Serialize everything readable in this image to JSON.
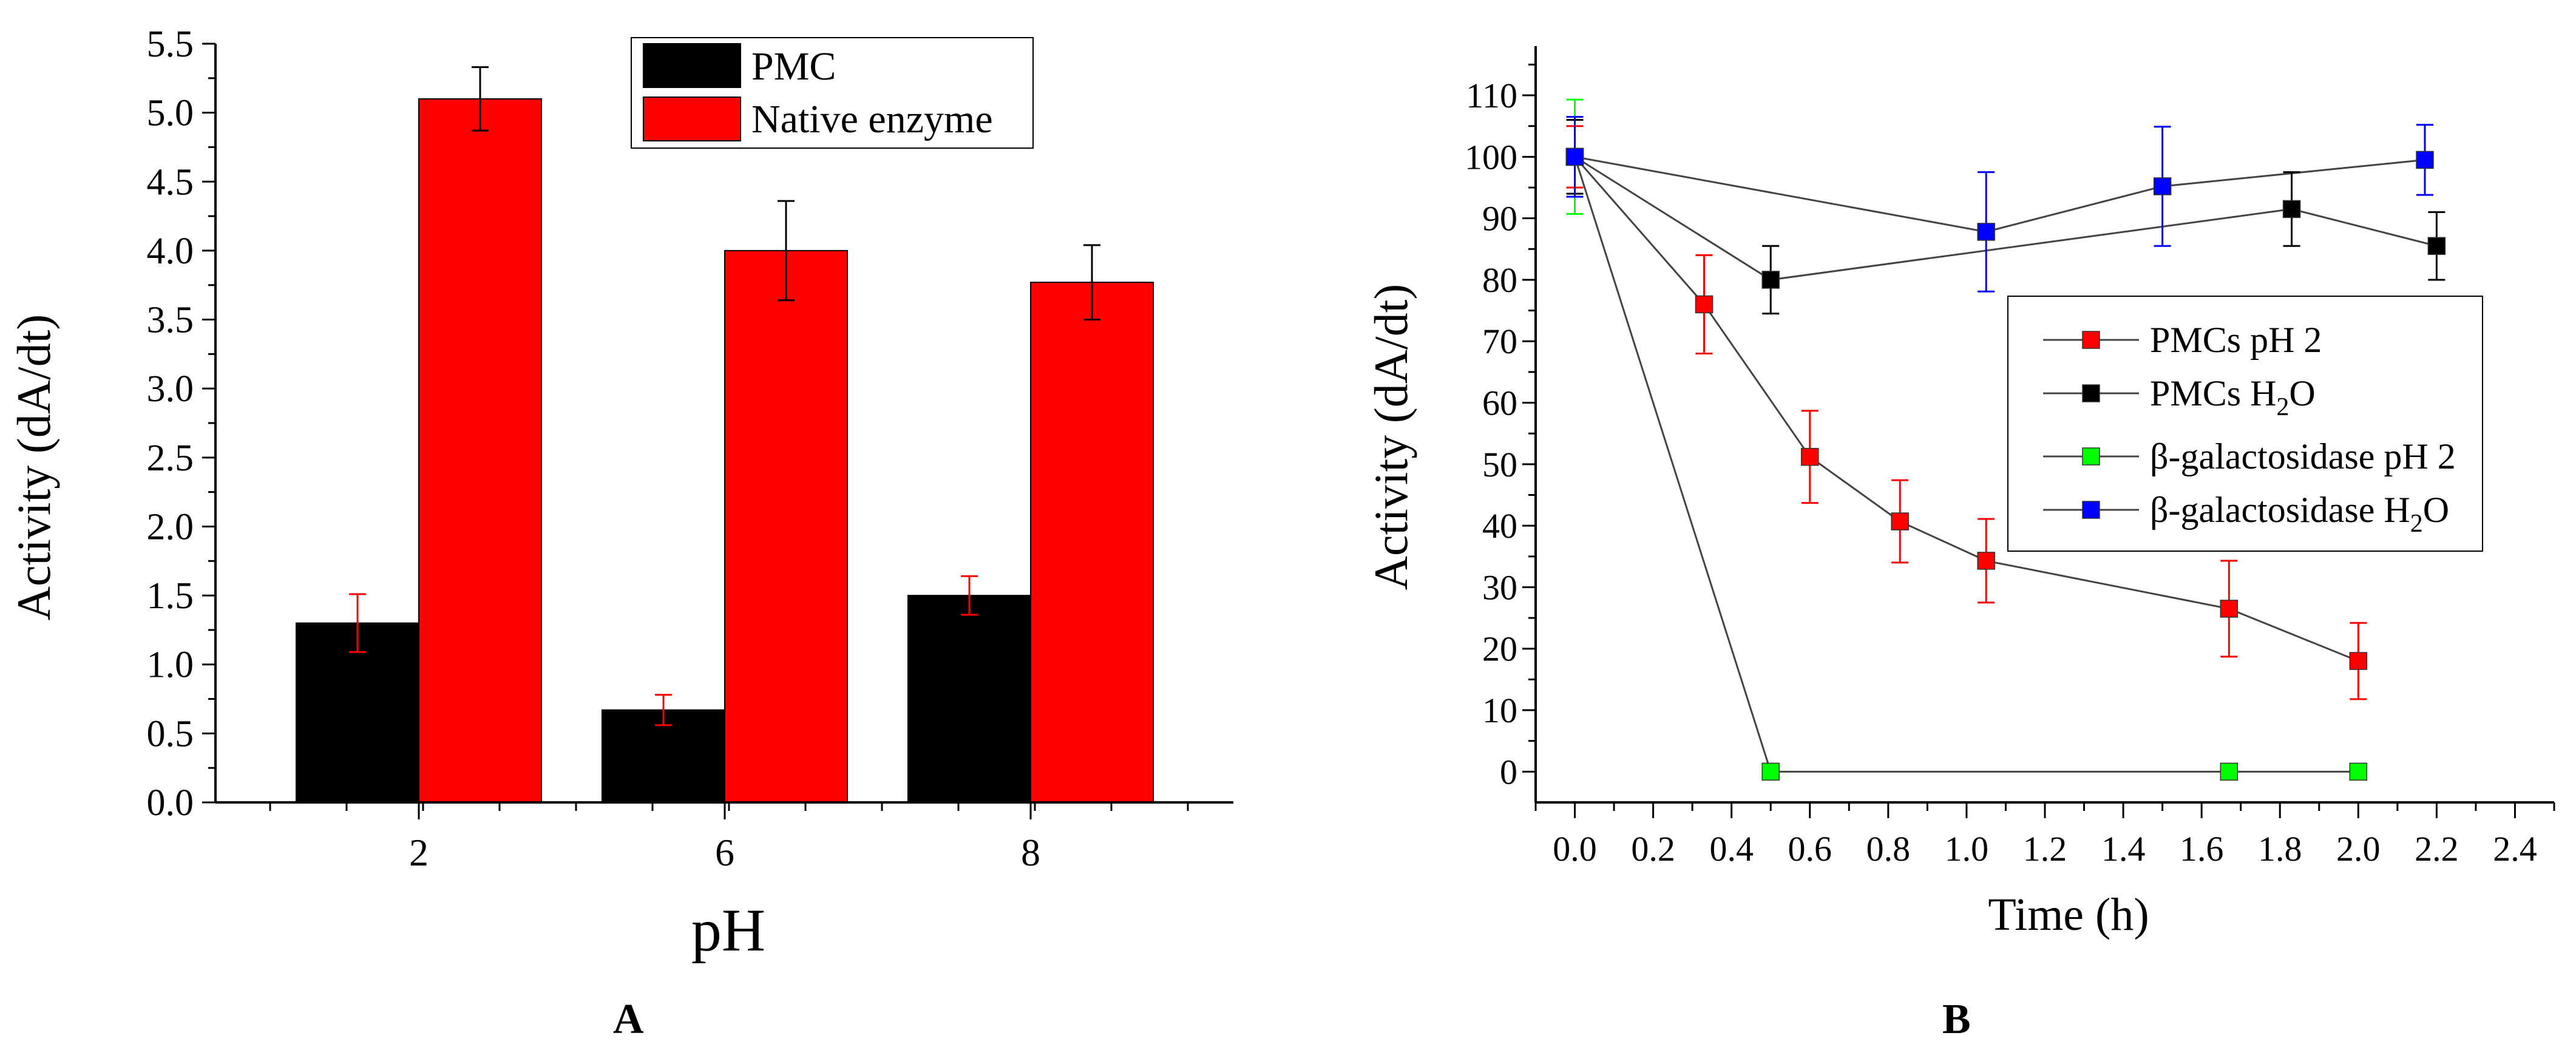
{
  "chart_data": [
    {
      "type": "bar",
      "panel_label": "A",
      "xlabel": "pH",
      "ylabel": "Activity (dA/dt)",
      "ylim": [
        0,
        5.5
      ],
      "yticks": [
        "0.0",
        "0.5",
        "1.0",
        "1.5",
        "2.0",
        "2.5",
        "3.0",
        "3.5",
        "4.0",
        "4.5",
        "5.0",
        "5.5"
      ],
      "categories": [
        "2",
        "6",
        "8"
      ],
      "series": [
        {
          "name": "PMC",
          "color": "#000000",
          "values": [
            1.3,
            0.67,
            1.5
          ],
          "errors": [
            0.21,
            0.11,
            0.14
          ],
          "error_color": "#ff0000"
        },
        {
          "name": "Native enzyme",
          "color": "#ff0000",
          "values": [
            5.1,
            4.0,
            3.77
          ],
          "errors": [
            0.23,
            0.36,
            0.27
          ],
          "error_color": "#000000"
        }
      ],
      "legend_position": "top-right"
    },
    {
      "type": "line",
      "panel_label": "B",
      "xlabel": "Time (h)",
      "ylabel": "Activity (dA/dt)",
      "xlim": [
        -0.1,
        2.5
      ],
      "ylim": [
        -5,
        118
      ],
      "xticks": [
        "0.0",
        "0.2",
        "0.4",
        "0.6",
        "0.8",
        "1.0",
        "1.2",
        "1.4",
        "1.6",
        "1.8",
        "2.0",
        "2.2",
        "2.4"
      ],
      "yticks": [
        "0",
        "10",
        "20",
        "30",
        "40",
        "50",
        "60",
        "70",
        "80",
        "90",
        "100",
        "110"
      ],
      "series": [
        {
          "name": "PMCs pH 2",
          "color": "#ff0000",
          "x": [
            0,
            0.33,
            0.6,
            0.83,
            1.05,
            1.67,
            2.0
          ],
          "y": [
            100,
            76,
            51.2,
            40.7,
            34.3,
            26.5,
            18
          ],
          "err": [
            5,
            8,
            7.5,
            6.7,
            6.8,
            7.8,
            6.2
          ]
        },
        {
          "name": "PMCs H",
          "name_sub": "2",
          "name_tail": "O",
          "color": "#000000",
          "x": [
            0,
            0.5,
            1.83,
            2.2
          ],
          "y": [
            100,
            80,
            91.5,
            85.5
          ],
          "err": [
            6,
            5.5,
            6,
            5.5
          ]
        },
        {
          "name": "β-galactosidase pH 2",
          "color": "#00ff00",
          "x": [
            0,
            0.5,
            1.67,
            2.0
          ],
          "y": [
            100,
            0,
            0,
            0
          ],
          "err": [
            9.3,
            0,
            0,
            0
          ]
        },
        {
          "name": "β-galactosidase H",
          "name_sub": "2",
          "name_tail": "O",
          "color": "#0000ff",
          "x": [
            0,
            1.05,
            1.5,
            2.17
          ],
          "y": [
            100,
            87.8,
            95.2,
            99.5
          ],
          "err": [
            6.5,
            9.7,
            9.7,
            5.7
          ]
        }
      ],
      "legend_position": "right"
    }
  ]
}
